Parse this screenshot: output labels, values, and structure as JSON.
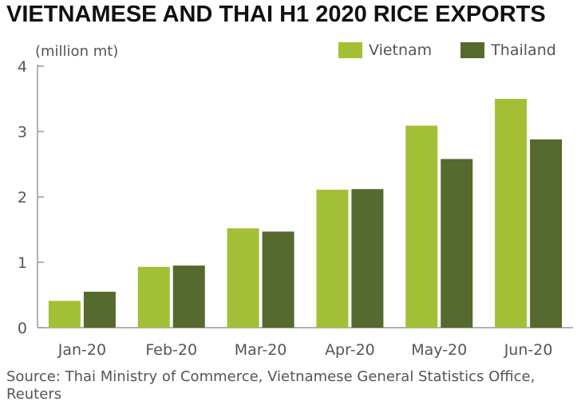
{
  "colors": {
    "vietnam": "#a3bf35",
    "thailand": "#56692e",
    "axis": "#999999",
    "text": "#555555"
  },
  "chart_data": {
    "type": "bar",
    "title": "VIETNAMESE AND THAI H1 2020 RICE EXPORTS",
    "ylabel": "(million mt)",
    "categories": [
      "Jan-20",
      "Feb-20",
      "Mar-20",
      "Apr-20",
      "May-20",
      "Jun-20"
    ],
    "series": [
      {
        "name": "Vietnam",
        "values": [
          0.41,
          0.93,
          1.52,
          2.11,
          3.09,
          3.5
        ]
      },
      {
        "name": "Thailand",
        "values": [
          0.55,
          0.95,
          1.47,
          2.12,
          2.58,
          2.88
        ]
      }
    ],
    "ylim": [
      0,
      4
    ],
    "yticks": [
      "0",
      "1",
      "2",
      "3",
      "4"
    ],
    "grid": false,
    "legend": "top-right"
  },
  "source": "Source: Thai Ministry of Commerce, Vietnamese General Statistics Office, Reuters"
}
